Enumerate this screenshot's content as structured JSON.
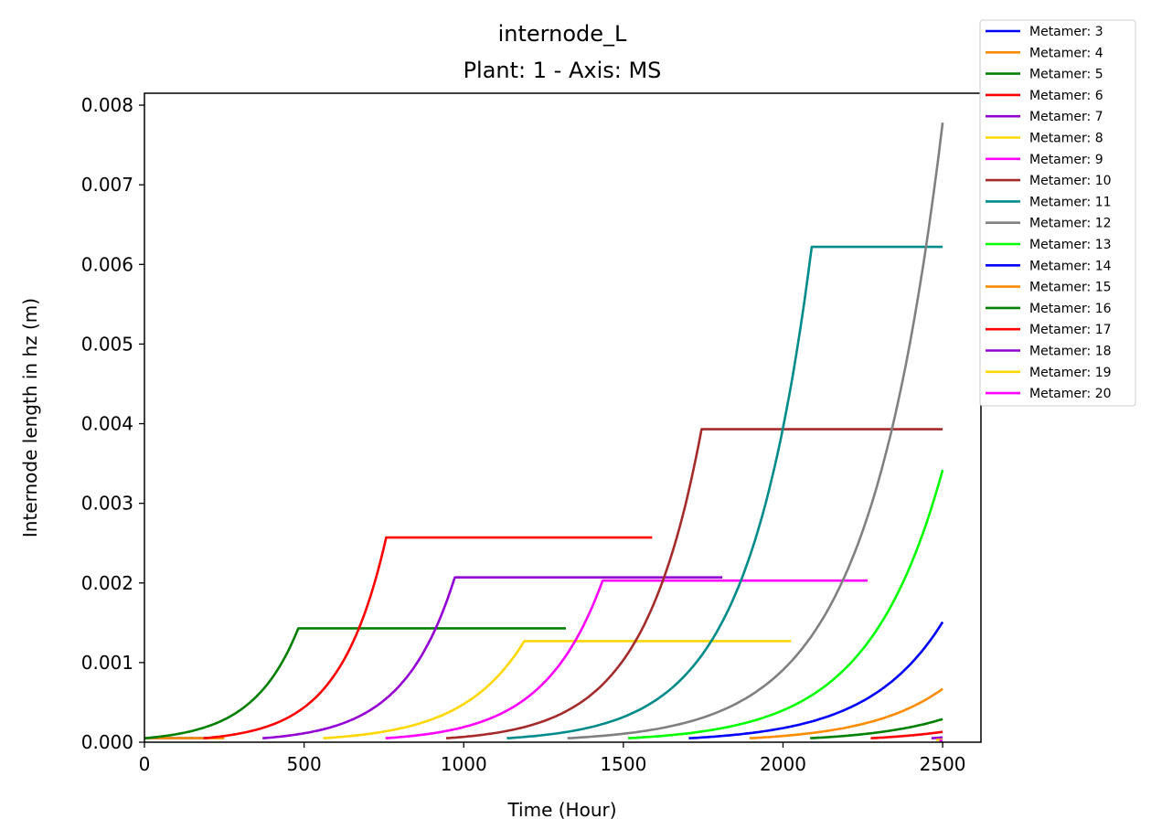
{
  "chart_data": {
    "type": "line",
    "title": "internode_L",
    "subtitle": "Plant: 1 - Axis: MS",
    "xlabel": "Time (Hour)",
    "ylabel": "Internode length in hz (m)",
    "xlim": [
      0,
      2620
    ],
    "ylim": [
      0,
      0.00815
    ],
    "xticks": [
      0,
      500,
      1000,
      1500,
      2000,
      2500
    ],
    "xtick_labels": [
      "0",
      "500",
      "1000",
      "1500",
      "2000",
      "2500"
    ],
    "yticks": [
      0,
      0.001,
      0.002,
      0.003,
      0.004,
      0.005,
      0.006,
      0.007,
      0.008
    ],
    "ytick_labels": [
      "0.000",
      "0.001",
      "0.002",
      "0.003",
      "0.004",
      "0.005",
      "0.006",
      "0.007",
      "0.008"
    ],
    "grid": false,
    "legend_position": "outside-top-right",
    "series": [
      {
        "name": "Metamer: 3",
        "color": "#0000ff",
        "start": 0,
        "peak_time": 0,
        "end": 200,
        "start_value": 5e-05,
        "final_value": 5e-05
      },
      {
        "name": "Metamer: 4",
        "color": "#ff8c00",
        "start": 0,
        "peak_time": 0,
        "end": 250,
        "start_value": 5e-05,
        "final_value": 5e-05
      },
      {
        "name": "Metamer: 5",
        "color": "#008000",
        "start": 0,
        "peak_time": 482,
        "end": 1320,
        "start_value": 5e-05,
        "final_value": 0.00143
      },
      {
        "name": "Metamer: 6",
        "color": "#ff0000",
        "start": 185,
        "peak_time": 757,
        "end": 1590,
        "start_value": 5e-05,
        "final_value": 0.00257
      },
      {
        "name": "Metamer: 7",
        "color": "#9400d3",
        "start": 370,
        "peak_time": 972,
        "end": 1810,
        "start_value": 5e-05,
        "final_value": 0.00207
      },
      {
        "name": "Metamer: 8",
        "color": "#ffd700",
        "start": 560,
        "peak_time": 1190,
        "end": 2025,
        "start_value": 5e-05,
        "final_value": 0.00127
      },
      {
        "name": "Metamer: 9",
        "color": "#ff00ff",
        "start": 755,
        "peak_time": 1435,
        "end": 2265,
        "start_value": 5e-05,
        "final_value": 0.00203
      },
      {
        "name": "Metamer: 10",
        "color": "#a52a2a",
        "start": 945,
        "peak_time": 1745,
        "end": 2500,
        "start_value": 5e-05,
        "final_value": 0.00393
      },
      {
        "name": "Metamer: 11",
        "color": "#008b8b",
        "start": 1135,
        "peak_time": 2090,
        "end": 2500,
        "start_value": 5e-05,
        "final_value": 0.00622
      },
      {
        "name": "Metamer: 12",
        "color": "#808080",
        "start": 1325,
        "peak_time": 2500,
        "end": 2500,
        "start_value": 5e-05,
        "final_value": 0.00778
      },
      {
        "name": "Metamer: 13",
        "color": "#00ff00",
        "start": 1515,
        "peak_time": 2500,
        "end": 2500,
        "start_value": 5e-05,
        "final_value": 0.00342
      },
      {
        "name": "Metamer: 14",
        "color": "#0000ff",
        "start": 1705,
        "peak_time": 2500,
        "end": 2500,
        "start_value": 5e-05,
        "final_value": 0.00151
      },
      {
        "name": "Metamer: 15",
        "color": "#ff8c00",
        "start": 1895,
        "peak_time": 2500,
        "end": 2500,
        "start_value": 5e-05,
        "final_value": 0.00067
      },
      {
        "name": "Metamer: 16",
        "color": "#008000",
        "start": 2085,
        "peak_time": 2500,
        "end": 2500,
        "start_value": 5e-05,
        "final_value": 0.00029
      },
      {
        "name": "Metamer: 17",
        "color": "#ff0000",
        "start": 2275,
        "peak_time": 2500,
        "end": 2500,
        "start_value": 5e-05,
        "final_value": 0.00013
      },
      {
        "name": "Metamer: 18",
        "color": "#9400d3",
        "start": 2465,
        "peak_time": 2500,
        "end": 2500,
        "start_value": 5e-05,
        "final_value": 6e-05
      },
      {
        "name": "Metamer: 19",
        "color": "#ffd700",
        "start": 2480,
        "peak_time": 2500,
        "end": 2500,
        "start_value": 3e-05,
        "final_value": 3e-05
      },
      {
        "name": "Metamer: 20",
        "color": "#ff00ff",
        "start": 2490,
        "peak_time": 2500,
        "end": 2500,
        "start_value": 2e-05,
        "final_value": 2e-05
      }
    ]
  }
}
